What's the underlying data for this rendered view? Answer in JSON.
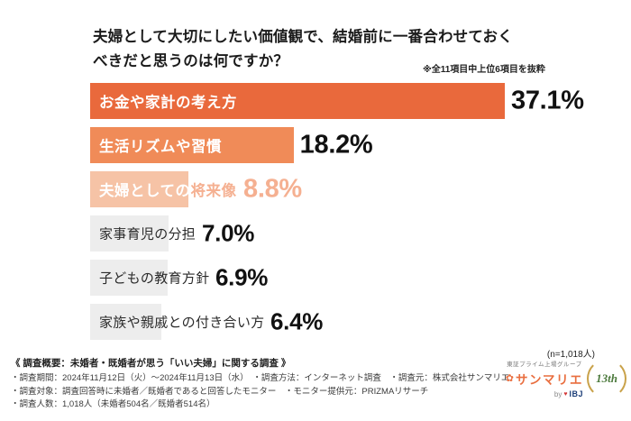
{
  "title": {
    "line1": "夫婦として大切にしたい価値観で、結婚前に一番合わせておく",
    "line2": "べきだと思うのは何ですか？",
    "note": "※全11項目中上位6項目を抜粋"
  },
  "chart_data": {
    "type": "bar",
    "orientation": "horizontal",
    "title": "夫婦として大切にしたい価値観で、結婚前に一番合わせておくべきだと思うのは何ですか？",
    "categories": [
      "お金や家計の考え方",
      "生活リズムや習慣",
      "夫婦としての将来像",
      "家事育児の分担",
      "子どもの教育方針",
      "家族や親戚との付き合い方"
    ],
    "values": [
      37.1,
      18.2,
      8.8,
      7.0,
      6.9,
      6.4
    ],
    "value_labels": [
      "37.1%",
      "18.2%",
      "8.8%",
      "7.0%",
      "6.9%",
      "6.4%"
    ],
    "xlim": [
      0,
      40
    ],
    "sample_label": "(n=1,018人)",
    "category3_parts": {
      "inside": "夫婦としての",
      "outside": "将来像"
    },
    "bar_colors": [
      "#e9693c",
      "#f08b58",
      "#f6c3a6",
      "#ededed",
      "#ededed",
      "#ededed"
    ],
    "label_colors": [
      "#ffffff",
      "#ffffff",
      "#ffffff",
      "#2b2b2b",
      "#2b2b2b",
      "#2b2b2b"
    ],
    "value_colors": [
      "#111111",
      "#111111",
      "#f5b091",
      "#111111",
      "#111111",
      "#111111"
    ]
  },
  "survey": {
    "heading": "《 調査概要：未婚者・既婚者が思う「いい夫婦」に関する調査 》",
    "lines": [
      "・調査期間：2024年11月12日（火）～2024年11月13日（水）　・調査方法：インターネット調査　・調査元：株式会社サンマリエ",
      "・調査対象：調査回答時に未婚者／既婚者であると回答したモニター　・モニター提供元：PRIZMAリサーチ",
      "・調査人数：1,018人（未婚者504名／既婚者514名）"
    ]
  },
  "logo": {
    "group_text": "東証プライム上場グループ",
    "brand": "サンマリエ",
    "by": "by",
    "ibj": "IBJ",
    "anniversary": "13th"
  }
}
